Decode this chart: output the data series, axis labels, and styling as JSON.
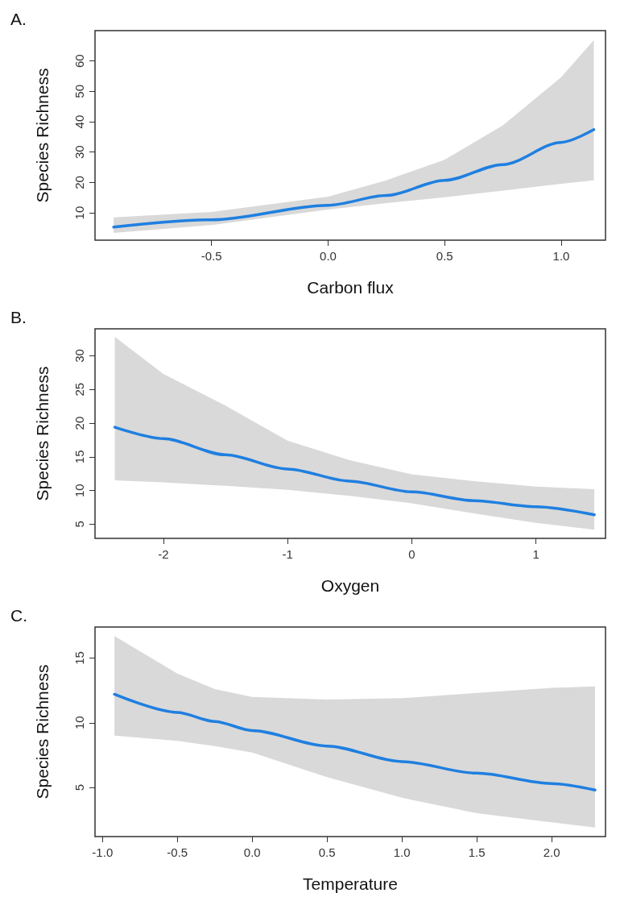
{
  "chart_data": [
    {
      "type": "line",
      "title": "A.",
      "xlabel": "Carbon flux",
      "ylabel": "Species Richness",
      "xlim": [
        -1.0,
        1.19
      ],
      "ylim": [
        1,
        70
      ],
      "xticks": [
        -0.5,
        {
          "value": 0,
          "label": "0.0"
        },
        0.5,
        {
          "value": 1,
          "label": "1.0"
        }
      ],
      "yticks": [
        10,
        20,
        30,
        40,
        50,
        60
      ],
      "grid": false,
      "marker": "none",
      "line_style": "solid",
      "series": [
        {
          "color": "#1f7fe0",
          "x": [
            -0.92,
            -0.5,
            0,
            0.25,
            0.5,
            0.75,
            1.0,
            1.14
          ],
          "values": [
            5.3,
            7.7,
            12.5,
            15.7,
            20.7,
            25.9,
            33.2,
            37.4
          ],
          "lower": [
            3.4,
            6.0,
            11.1,
            13.2,
            15.1,
            17.3,
            19.6,
            20.7
          ],
          "upper": [
            8.5,
            10.3,
            15.3,
            20.7,
            27.5,
            38.8,
            54.7,
            66.9
          ]
        }
      ]
    },
    {
      "type": "line",
      "title": "B.",
      "xlabel": "Oxygen",
      "ylabel": "Species Richness",
      "xlim": [
        -2.55,
        1.56
      ],
      "ylim": [
        2.9,
        34
      ],
      "xticks": [
        -2,
        -1,
        0,
        1
      ],
      "yticks": [
        5,
        10,
        15,
        20,
        25,
        30
      ],
      "grid": false,
      "marker": "none",
      "line_style": "solid",
      "series": [
        {
          "color": "#1f7fe0",
          "x": [
            -2.39,
            -2,
            -1.5,
            -1,
            -0.5,
            0,
            0.5,
            1,
            1.47
          ],
          "values": [
            19.4,
            17.7,
            15.3,
            13.2,
            11.4,
            9.8,
            8.5,
            7.6,
            6.4
          ],
          "lower": [
            11.5,
            11.2,
            10.7,
            10.1,
            9.2,
            8.1,
            6.6,
            5.2,
            4.2
          ],
          "upper": [
            32.8,
            27.3,
            22.6,
            17.4,
            14.5,
            12.4,
            11.4,
            10.6,
            10.2
          ]
        }
      ]
    },
    {
      "type": "line",
      "title": "C.",
      "xlabel": "Temperature",
      "ylabel": "Species Richness",
      "xlim": [
        -1.05,
        2.36
      ],
      "ylim": [
        1.2,
        17.4
      ],
      "xticks": [
        {
          "value": -1,
          "label": "-1.0"
        },
        -0.5,
        {
          "value": 0,
          "label": "0.0"
        },
        0.5,
        {
          "value": 1,
          "label": "1.0"
        },
        1.5,
        {
          "value": 2,
          "label": "2.0"
        }
      ],
      "yticks": [
        5,
        10,
        15
      ],
      "grid": false,
      "marker": "none",
      "line_style": "solid",
      "series": [
        {
          "color": "#1f7fe0",
          "x": [
            -0.92,
            -0.5,
            -0.25,
            0,
            0.5,
            1.0,
            1.5,
            2.0,
            2.29
          ],
          "values": [
            12.2,
            10.8,
            10.1,
            9.4,
            8.2,
            7.0,
            6.1,
            5.3,
            4.8
          ],
          "lower": [
            9.0,
            8.6,
            8.2,
            7.7,
            5.8,
            4.2,
            3.0,
            2.3,
            1.9
          ],
          "upper": [
            16.7,
            13.8,
            12.6,
            12.0,
            11.8,
            11.9,
            12.3,
            12.7,
            12.8
          ]
        }
      ]
    }
  ]
}
